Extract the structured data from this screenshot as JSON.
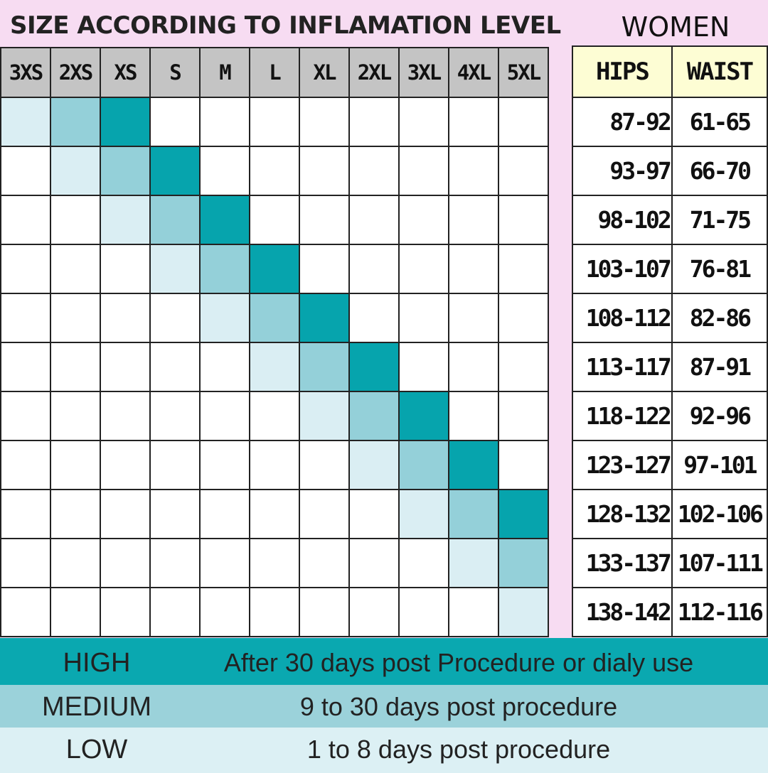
{
  "header": {
    "title": "SIZE ACCORDING TO INFLAMATION LEVEL",
    "section": "WOMEN"
  },
  "sizes": [
    "3XS",
    "2XS",
    "XS",
    "S",
    "M",
    "L",
    "XL",
    "2XL",
    "3XL",
    "4XL",
    "5XL"
  ],
  "measurements": {
    "headers": {
      "hips": "HIPS",
      "waist": "WAIST"
    },
    "rows": [
      {
        "hips": "87-92",
        "waist": "61-65"
      },
      {
        "hips": "93-97",
        "waist": "66-70"
      },
      {
        "hips": "98-102",
        "waist": "71-75"
      },
      {
        "hips": "103-107",
        "waist": "76-81"
      },
      {
        "hips": "108-112",
        "waist": "82-86"
      },
      {
        "hips": "113-117",
        "waist": "87-91"
      },
      {
        "hips": "118-122",
        "waist": "92-96"
      },
      {
        "hips": "123-127",
        "waist": "97-101"
      },
      {
        "hips": "128-132",
        "waist": "102-106"
      },
      {
        "hips": "133-137",
        "waist": "107-111"
      },
      {
        "hips": "138-142",
        "waist": "112-116"
      }
    ]
  },
  "legend": [
    {
      "level": "HIGH",
      "description": "After 30 days post Procedure or dialy use",
      "color": "#0aa8b0"
    },
    {
      "level": "MEDIUM",
      "description": "9 to 30 days post procedure",
      "color": "#9bd2da"
    },
    {
      "level": "LOW",
      "description": "1 to 8 days post procedure",
      "color": "#dcf0f4"
    }
  ]
}
